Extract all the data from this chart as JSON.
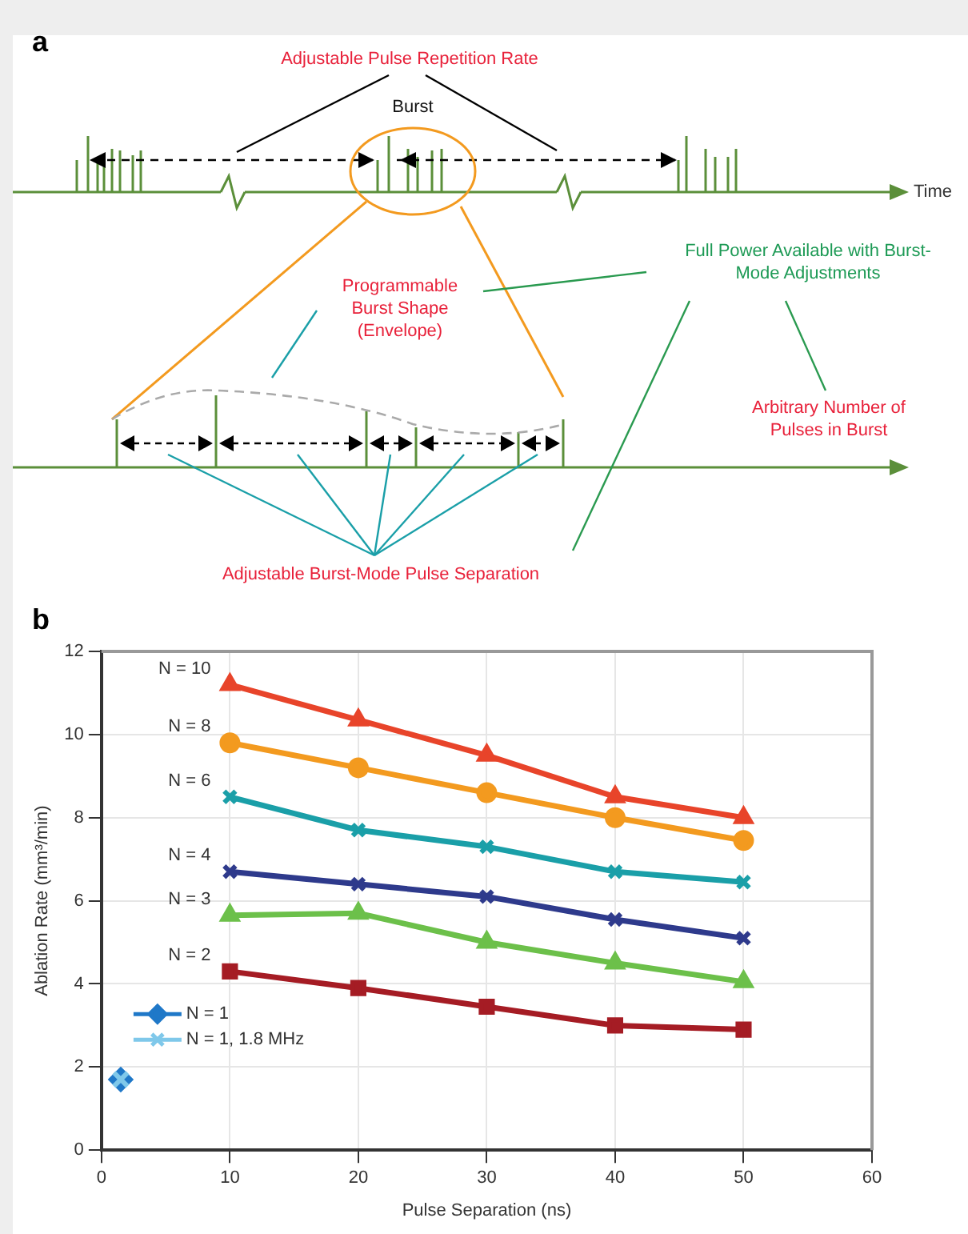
{
  "chart_data": [
    {
      "type": "other",
      "title": "a",
      "annotations": [
        "Adjustable Pulse Repetition Rate",
        "Burst",
        "Time",
        "Full Power Available with Burst-Mode Adjustments",
        "Programmable Burst Shape (Envelope)",
        "Arbitrary Number of Pulses in Burst",
        "Adjustable Burst-Mode Pulse Separation"
      ]
    },
    {
      "type": "line",
      "title": "b",
      "xlabel": "Pulse Separation (ns)",
      "ylabel": "Ablation Rate (mm³/min)",
      "x": [
        10,
        20,
        30,
        40,
        50
      ],
      "xlim": [
        0,
        60
      ],
      "xticks": [
        0,
        10,
        20,
        30,
        40,
        50,
        60
      ],
      "ylim": [
        0,
        12
      ],
      "yticks": [
        0,
        2,
        4,
        6,
        8,
        10,
        12
      ],
      "grid": true,
      "legend": "bottom left",
      "series": [
        {
          "name": "N = 10",
          "color": "#e8442a",
          "marker": "triangle",
          "values": [
            11.2,
            10.35,
            9.5,
            8.5,
            8.0
          ]
        },
        {
          "name": "N = 8",
          "color": "#f39a1f",
          "marker": "circle",
          "values": [
            9.8,
            9.2,
            8.6,
            8.0,
            7.45
          ]
        },
        {
          "name": "N = 6",
          "color": "#1a9fa8",
          "marker": "cross",
          "values": [
            8.5,
            7.7,
            7.3,
            6.7,
            6.45
          ]
        },
        {
          "name": "N = 4",
          "color": "#2e3a8c",
          "marker": "cross",
          "values": [
            6.7,
            6.4,
            6.1,
            5.55,
            5.1
          ]
        },
        {
          "name": "N = 3",
          "color": "#6cc04a",
          "marker": "triangle",
          "values": [
            5.65,
            5.7,
            5.0,
            4.5,
            4.05
          ]
        },
        {
          "name": "N = 2",
          "color": "#a51c24",
          "marker": "square",
          "values": [
            4.3,
            3.9,
            3.45,
            3.0,
            2.9
          ]
        },
        {
          "name": "N = 1",
          "color": "#1f78c8",
          "marker": "diamond",
          "x": [
            1.5
          ],
          "values": [
            1.7
          ]
        },
        {
          "name": "N = 1, 1.8 MHz",
          "color": "#7fc8ea",
          "marker": "cross",
          "x": [
            1.5
          ],
          "values": [
            1.7
          ]
        }
      ]
    }
  ]
}
